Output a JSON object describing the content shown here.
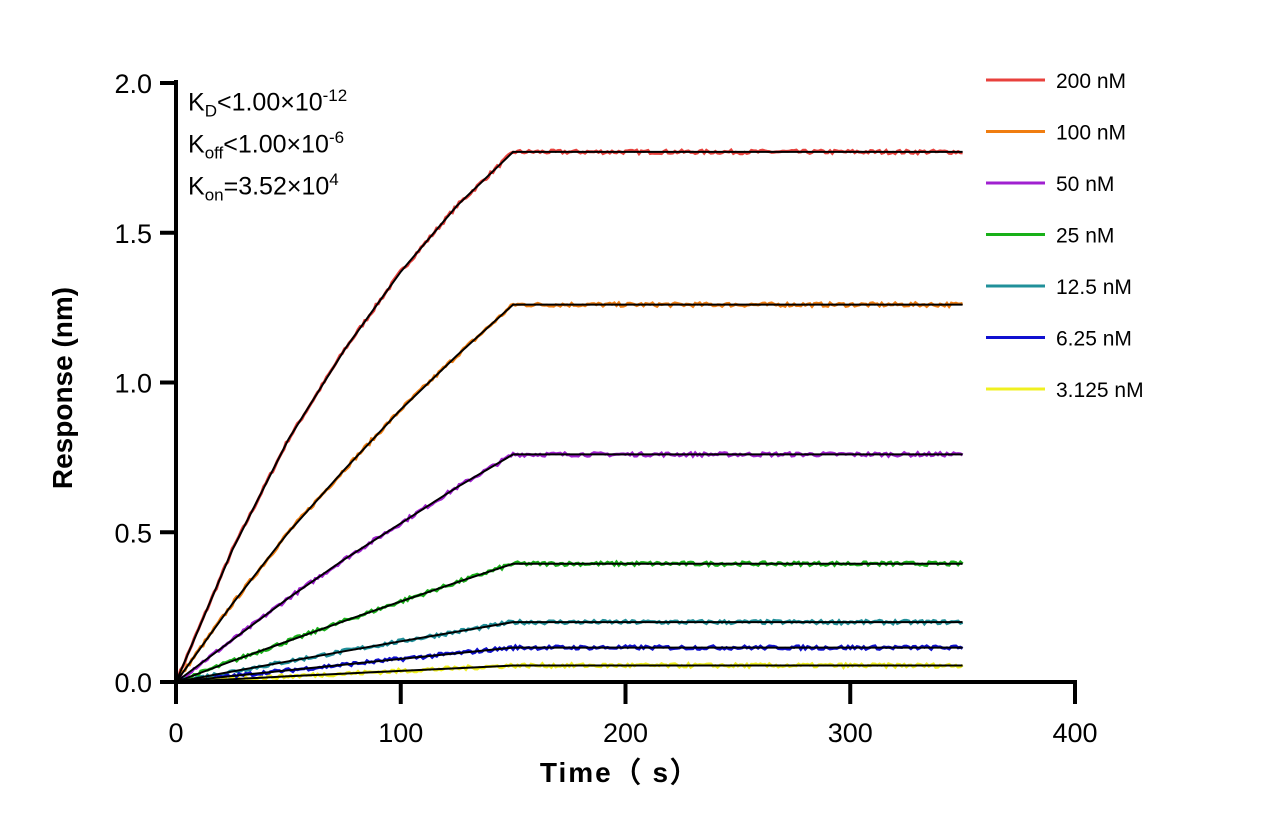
{
  "chart_data": {
    "type": "line",
    "xlabel": "Time（ s）",
    "ylabel": "Response (nm)",
    "xlim": [
      0,
      400
    ],
    "ylim": [
      0,
      2.0
    ],
    "xticks": [
      "0",
      "100",
      "200",
      "300",
      "400"
    ],
    "yticks": [
      "0.0",
      "0.5",
      "1.0",
      "1.5",
      "2.0"
    ],
    "grid": false,
    "legend_position": "right",
    "fit_color": "#000000",
    "annotations": {
      "kd": {
        "sym": "K",
        "sub": "D",
        "text": "<1.00×10",
        "exp": "-12"
      },
      "koff": {
        "sym": "K",
        "sub": "off",
        "text": "<1.00×10",
        "exp": "-6"
      },
      "kon": {
        "sym": "K",
        "sub": "on",
        "text": "=3.52×10",
        "exp": "4"
      }
    },
    "x": [
      0,
      25,
      50,
      75,
      100,
      125,
      150,
      200,
      250,
      300,
      350
    ],
    "series": [
      {
        "name": "200 nM",
        "color": "#e8413c",
        "values": [
          0,
          0.44,
          0.81,
          1.11,
          1.37,
          1.59,
          1.77,
          1.77,
          1.77,
          1.77,
          1.77
        ]
      },
      {
        "name": "100 nM",
        "color": "#f07d10",
        "values": [
          0,
          0.26,
          0.5,
          0.71,
          0.91,
          1.09,
          1.26,
          1.26,
          1.26,
          1.26,
          1.26
        ]
      },
      {
        "name": "50 nM",
        "color": "#a020d0",
        "values": [
          0,
          0.14,
          0.28,
          0.41,
          0.53,
          0.65,
          0.76,
          0.76,
          0.76,
          0.76,
          0.76
        ]
      },
      {
        "name": "25 nM",
        "color": "#18b018",
        "values": [
          0,
          0.07,
          0.137,
          0.204,
          0.269,
          0.333,
          0.395,
          0.395,
          0.395,
          0.395,
          0.395
        ]
      },
      {
        "name": "12.5 nM",
        "color": "#20909a",
        "values": [
          0,
          0.035,
          0.069,
          0.103,
          0.136,
          0.168,
          0.2,
          0.2,
          0.2,
          0.2,
          0.2
        ]
      },
      {
        "name": "6.25 nM",
        "color": "#1010d0",
        "values": [
          0,
          0.02,
          0.039,
          0.058,
          0.077,
          0.096,
          0.115,
          0.115,
          0.115,
          0.115,
          0.115
        ]
      },
      {
        "name": "3.125 nM",
        "color": "#f0f020",
        "values": [
          0,
          0.0095,
          0.019,
          0.028,
          0.037,
          0.046,
          0.055,
          0.055,
          0.055,
          0.055,
          0.055
        ]
      }
    ]
  }
}
